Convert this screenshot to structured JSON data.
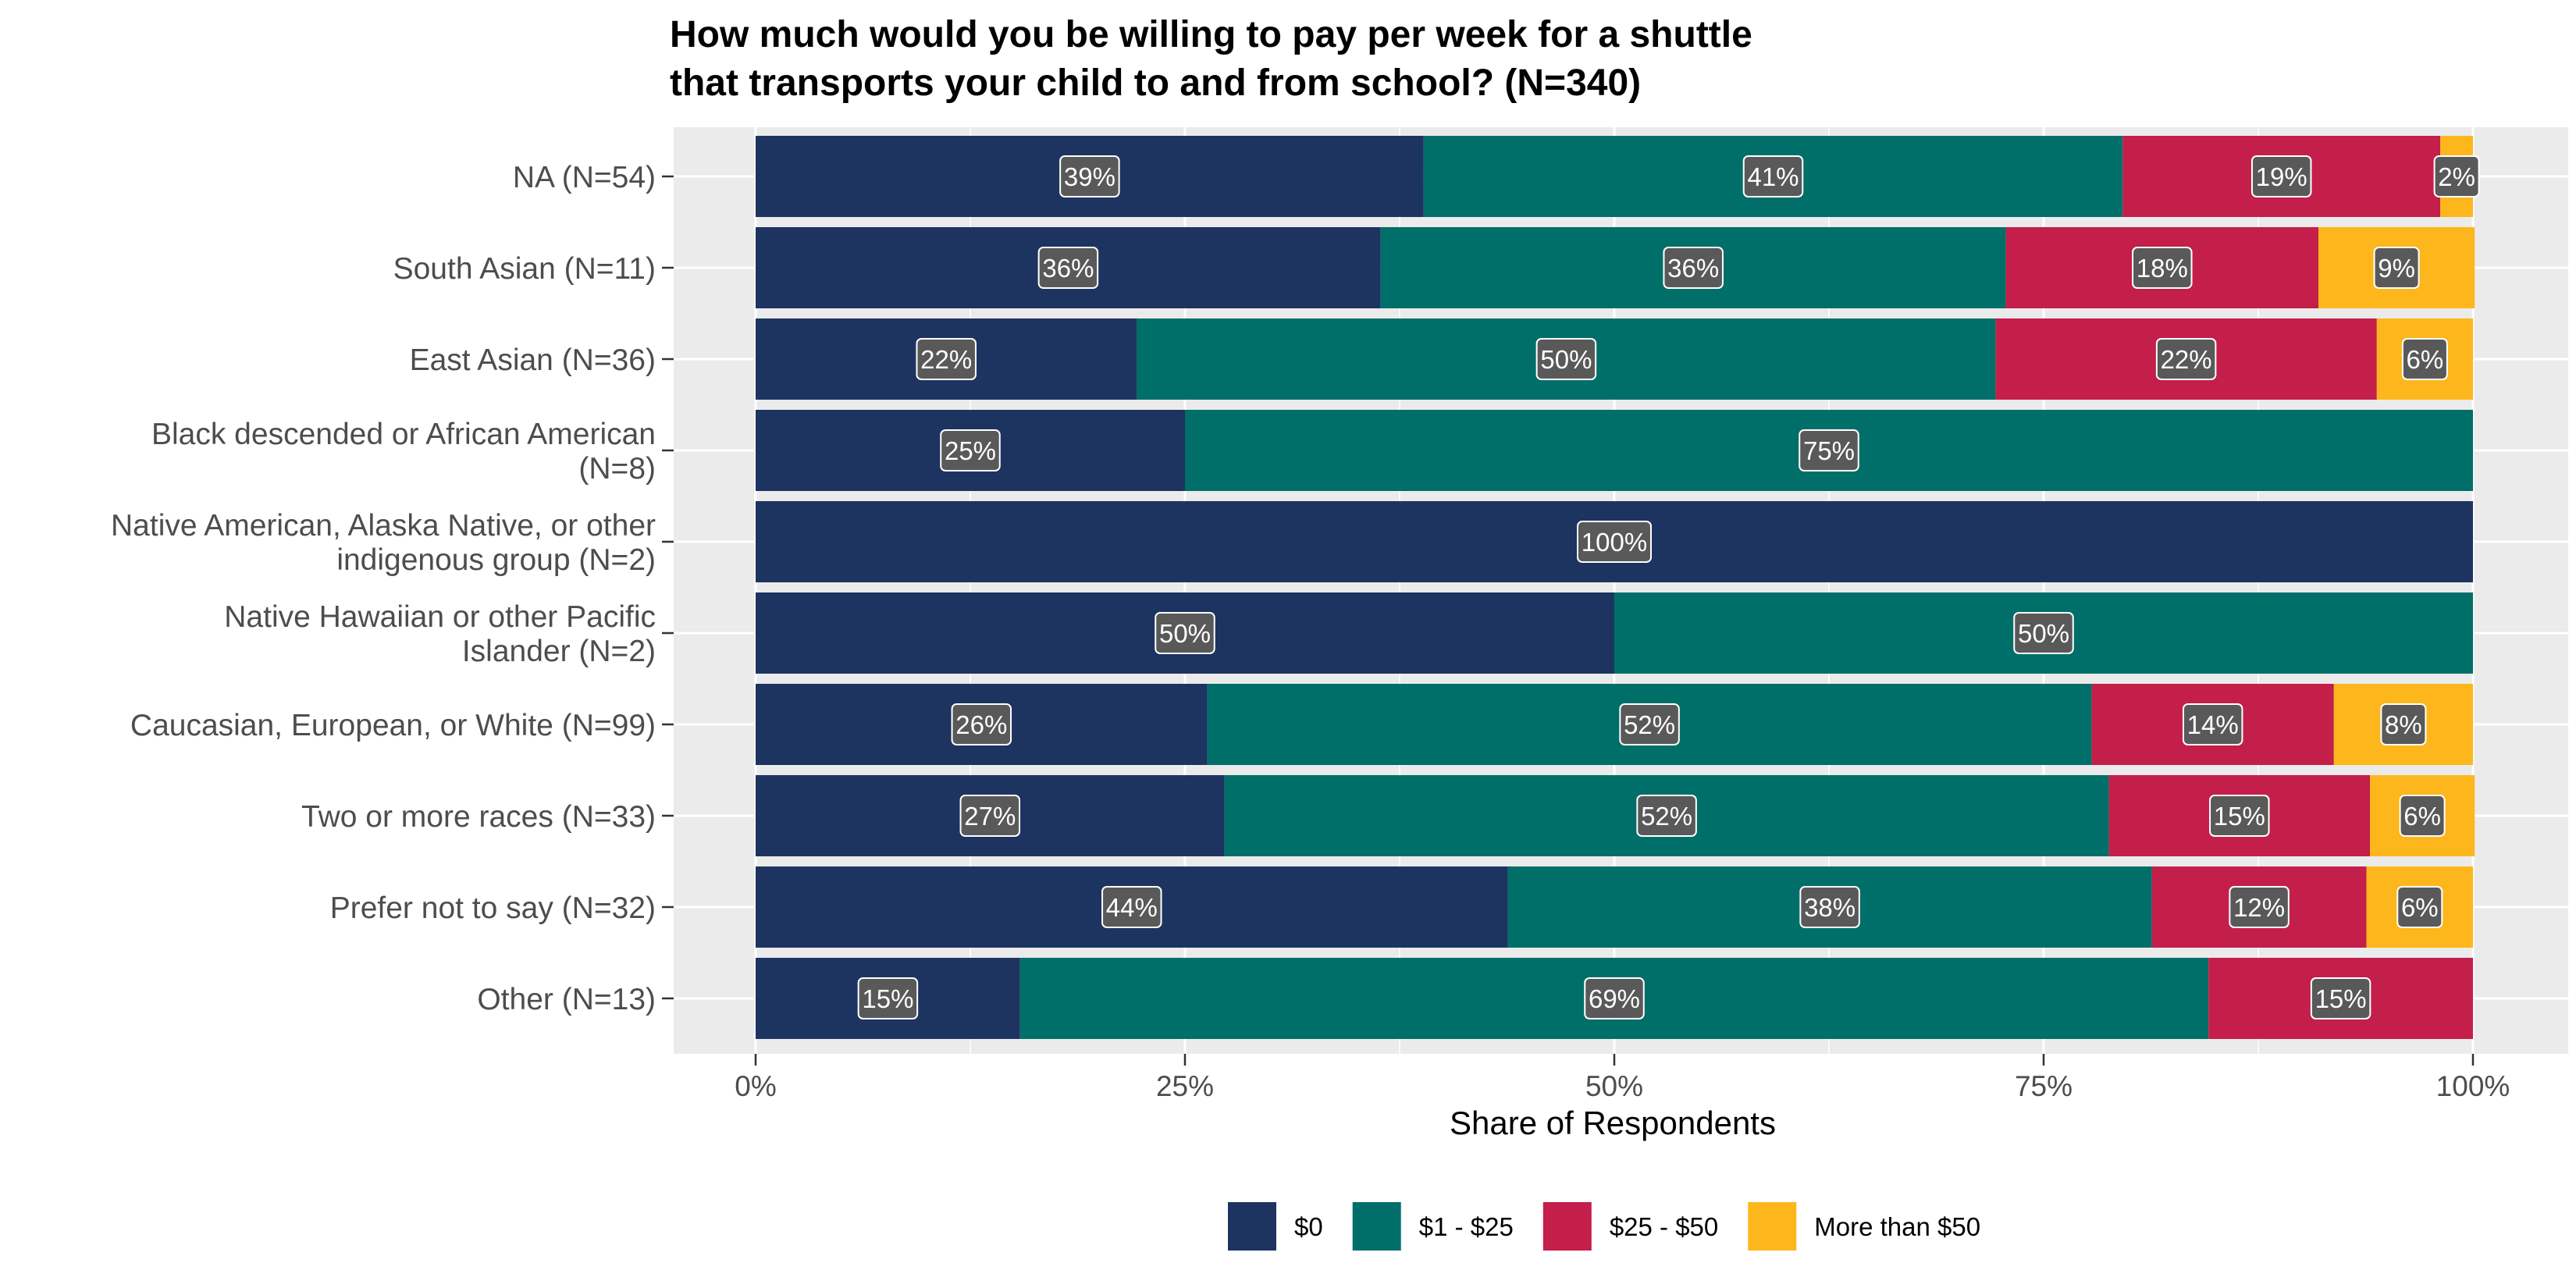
{
  "chart_data": {
    "type": "bar",
    "orientation": "horizontal",
    "stacked": true,
    "title": "How much would you be willing to pay per week for a shuttle that transports your child to and from school? (N=340)",
    "title_lines": [
      "How much would you be willing to pay per week for a shuttle",
      "that transports your child to and from school? (N=340)"
    ],
    "xlabel": "Share of Respondents",
    "ylabel": "",
    "xlim": [
      0,
      100
    ],
    "x_ticks": [
      0,
      25,
      50,
      75,
      100
    ],
    "x_tick_labels": [
      "0%",
      "25%",
      "50%",
      "75%",
      "100%"
    ],
    "grid": true,
    "legend_position": "bottom",
    "categories": [
      "NA (N=54)",
      "South Asian (N=11)",
      "East Asian (N=36)",
      "Black descended or African American (N=8)",
      "Native American, Alaska Native, or other indigenous group (N=2)",
      "Native Hawaiian or other Pacific Islander (N=2)",
      "Caucasian, European, or White (N=99)",
      "Two or more races (N=33)",
      "Prefer not to say (N=32)",
      "Other (N=13)"
    ],
    "category_lines": [
      [
        "NA (N=54)"
      ],
      [
        "South Asian (N=11)"
      ],
      [
        "East Asian (N=36)"
      ],
      [
        "Black descended or African American",
        "(N=8)"
      ],
      [
        "Native American, Alaska Native, or other",
        "indigenous group (N=2)"
      ],
      [
        "Native Hawaiian or other Pacific",
        "Islander (N=2)"
      ],
      [
        "Caucasian, European, or White (N=99)"
      ],
      [
        "Two or more races (N=33)"
      ],
      [
        "Prefer not to say (N=32)"
      ],
      [
        "Other (N=13)"
      ]
    ],
    "series": [
      {
        "name": "$0",
        "color": "#1d3461",
        "values": [
          38.9,
          36.4,
          22.2,
          25,
          100,
          50,
          26.3,
          27.3,
          43.8,
          15.4
        ],
        "labels": [
          "39%",
          "36%",
          "22%",
          "25%",
          "100%",
          "50%",
          "26%",
          "27%",
          "44%",
          "15%"
        ]
      },
      {
        "name": "$1 - $25",
        "color": "#006f69",
        "values": [
          40.7,
          36.4,
          50,
          75,
          0,
          50,
          51.5,
          51.5,
          37.5,
          69.2
        ],
        "labels": [
          "41%",
          "36%",
          "50%",
          "75%",
          "",
          "50%",
          "52%",
          "52%",
          "38%",
          "69%"
        ]
      },
      {
        "name": "$25 - $50",
        "color": "#c41e4a",
        "values": [
          18.5,
          18.2,
          22.2,
          0,
          0,
          0,
          14.1,
          15.2,
          12.5,
          15.4
        ],
        "labels": [
          "19%",
          "18%",
          "22%",
          "",
          "",
          "",
          "14%",
          "15%",
          "12%",
          "15%"
        ]
      },
      {
        "name": "More than $50",
        "color": "#fdb71c",
        "values": [
          1.9,
          9.1,
          5.6,
          0,
          0,
          0,
          8.1,
          6.1,
          6.2,
          0
        ],
        "labels": [
          "2%",
          "9%",
          "6%",
          "",
          "",
          "",
          "8%",
          "6%",
          "6%",
          ""
        ]
      }
    ],
    "colors": {
      "panel_background": "#ebebeb",
      "grid_line": "#ffffff",
      "value_label_fill": "#595959"
    }
  }
}
